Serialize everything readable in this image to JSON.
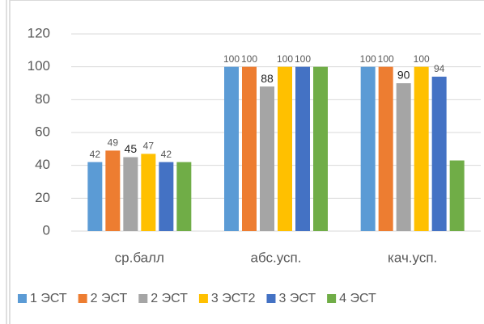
{
  "chart_data": {
    "type": "bar",
    "categories": [
      "ср.балл",
      "абс.усп.",
      "кач.усп."
    ],
    "series": [
      {
        "name": "1 ЭСТ",
        "color": "#5b9bd5",
        "values": [
          42,
          100,
          100
        ],
        "data_labels": true
      },
      {
        "name": "2 ЭСТ",
        "color": "#ed7d31",
        "values": [
          49,
          100,
          100
        ],
        "data_labels": true
      },
      {
        "name": "2 ЭСТ",
        "color": "#a5a5a5",
        "values": [
          45,
          88,
          90
        ],
        "data_labels": true
      },
      {
        "name": "3 ЭСТ2",
        "color": "#ffc000",
        "values": [
          47,
          100,
          100
        ],
        "data_labels": true
      },
      {
        "name": "3 ЭСТ",
        "color": "#4472c4",
        "values": [
          42,
          100,
          94
        ],
        "data_labels": true
      },
      {
        "name": "4 ЭСТ",
        "color": "#70ad47",
        "values": [
          42,
          100,
          43
        ],
        "data_labels": false
      }
    ],
    "ylim": [
      0,
      120
    ],
    "yticks": [
      0,
      20,
      40,
      60,
      80,
      100,
      120
    ],
    "grid": true,
    "legend": "bottom"
  }
}
